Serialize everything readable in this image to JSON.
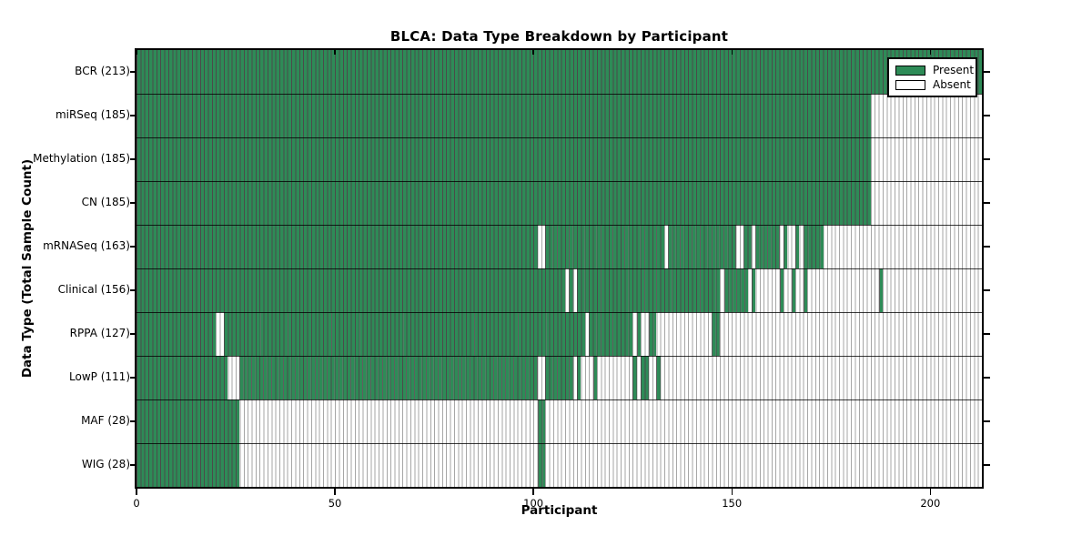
{
  "chart_data": {
    "type": "heatmap",
    "title": "BLCA: Data Type Breakdown by Participant",
    "xlabel": "Participant",
    "ylabel": "Data Type (Total Sample Count)",
    "xlim": [
      0,
      213
    ],
    "x_ticks": [
      0,
      50,
      100,
      150,
      200
    ],
    "grid": false,
    "legend": {
      "position": "upper right",
      "present": "Present",
      "absent": "Absent"
    },
    "colors": {
      "present": "#2E8B57",
      "absent": "#FFFFFF",
      "edge_on_present": "rgba(0,0,0,0.55)",
      "edge_on_absent": "rgba(0,0,0,0.35)",
      "frame": "#000000"
    },
    "rows": [
      {
        "name": "BCR",
        "label": "BCR (213)",
        "count": 213,
        "present_ranges": [
          [
            0,
            212
          ]
        ]
      },
      {
        "name": "miRSeq",
        "label": "miRSeq (185)",
        "count": 185,
        "present_ranges": [
          [
            0,
            184
          ]
        ]
      },
      {
        "name": "Methylation",
        "label": "Methylation (185)",
        "count": 185,
        "present_ranges": [
          [
            0,
            184
          ]
        ]
      },
      {
        "name": "CN",
        "label": "CN (185)",
        "count": 185,
        "present_ranges": [
          [
            0,
            184
          ]
        ]
      },
      {
        "name": "mRNASeq",
        "label": "mRNASeq (163)",
        "count": 163,
        "present_ranges": [
          [
            0,
            100
          ],
          [
            103,
            132
          ],
          [
            134,
            150
          ],
          [
            153,
            154
          ],
          [
            156,
            161
          ],
          [
            163,
            163
          ],
          [
            166,
            166
          ],
          [
            168,
            172
          ]
        ]
      },
      {
        "name": "Clinical",
        "label": "Clinical (156)",
        "count": 156,
        "present_ranges": [
          [
            0,
            107
          ],
          [
            109,
            109
          ],
          [
            111,
            146
          ],
          [
            148,
            153
          ],
          [
            155,
            155
          ],
          [
            162,
            162
          ],
          [
            165,
            165
          ],
          [
            168,
            168
          ],
          [
            187,
            187
          ]
        ]
      },
      {
        "name": "RPPA",
        "label": "RPPA (127)",
        "count": 127,
        "present_ranges": [
          [
            0,
            19
          ],
          [
            22,
            112
          ],
          [
            114,
            124
          ],
          [
            126,
            126
          ],
          [
            129,
            130
          ],
          [
            145,
            146
          ]
        ]
      },
      {
        "name": "LowP",
        "label": "LowP (111)",
        "count": 111,
        "present_ranges": [
          [
            0,
            22
          ],
          [
            26,
            100
          ],
          [
            103,
            109
          ],
          [
            111,
            111
          ],
          [
            115,
            115
          ],
          [
            125,
            125
          ],
          [
            127,
            128
          ],
          [
            131,
            131
          ]
        ]
      },
      {
        "name": "MAF",
        "label": "MAF (28)",
        "count": 28,
        "present_ranges": [
          [
            0,
            25
          ],
          [
            101,
            102
          ]
        ]
      },
      {
        "name": "WIG",
        "label": "WIG (28)",
        "count": 28,
        "present_ranges": [
          [
            0,
            25
          ],
          [
            101,
            102
          ]
        ]
      }
    ]
  }
}
